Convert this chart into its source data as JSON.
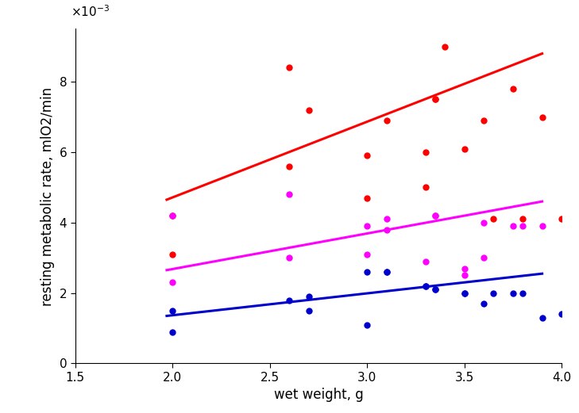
{
  "title": "",
  "xlabel": "wet weight, g",
  "ylabel": "resting metabolic rate, mlO2/min",
  "xlim": [
    1.5,
    4.0
  ],
  "ylim": [
    0,
    0.0095
  ],
  "yticks": [
    0,
    0.002,
    0.004,
    0.006,
    0.008
  ],
  "xticks": [
    1.5,
    2.0,
    2.5,
    3.0,
    3.5,
    4.0
  ],
  "red_scatter_x": [
    2.0,
    2.0,
    2.6,
    2.6,
    2.7,
    3.0,
    3.0,
    3.1,
    3.3,
    3.3,
    3.35,
    3.35,
    3.4,
    3.5,
    3.6,
    3.65,
    3.75,
    3.8,
    3.9,
    4.0
  ],
  "red_scatter_y": [
    0.0031,
    0.0042,
    0.0084,
    0.0056,
    0.0072,
    0.0059,
    0.0047,
    0.0069,
    0.006,
    0.005,
    0.0075,
    0.0075,
    0.009,
    0.0061,
    0.0069,
    0.0041,
    0.0078,
    0.0041,
    0.007,
    0.0041
  ],
  "magenta_scatter_x": [
    2.0,
    2.0,
    2.6,
    2.6,
    3.0,
    3.0,
    3.1,
    3.1,
    3.3,
    3.35,
    3.35,
    3.5,
    3.5,
    3.6,
    3.6,
    3.75,
    3.8,
    3.9
  ],
  "magenta_scatter_y": [
    0.0042,
    0.0023,
    0.0048,
    0.003,
    0.0031,
    0.0039,
    0.0041,
    0.0038,
    0.0029,
    0.0042,
    0.0042,
    0.0027,
    0.0025,
    0.004,
    0.003,
    0.0039,
    0.0039,
    0.0039
  ],
  "blue_scatter_x": [
    2.0,
    2.0,
    2.6,
    2.7,
    2.7,
    3.0,
    3.0,
    3.1,
    3.1,
    3.3,
    3.3,
    3.35,
    3.35,
    3.5,
    3.5,
    3.6,
    3.65,
    3.75,
    3.8,
    3.9,
    4.0
  ],
  "blue_scatter_y": [
    0.0009,
    0.0015,
    0.0018,
    0.0019,
    0.0015,
    0.0011,
    0.0026,
    0.0026,
    0.0026,
    0.0022,
    0.0022,
    0.0021,
    0.0021,
    0.002,
    0.002,
    0.0017,
    0.002,
    0.002,
    0.002,
    0.0013,
    0.0014
  ],
  "red_line_x": [
    1.97,
    3.9
  ],
  "red_line_y": [
    0.00465,
    0.0088
  ],
  "magenta_line_x": [
    1.97,
    3.9
  ],
  "magenta_line_y": [
    0.00265,
    0.0046
  ],
  "blue_line_x": [
    1.97,
    3.9
  ],
  "blue_line_y": [
    0.00135,
    0.00255
  ],
  "red_color": "#ff0000",
  "magenta_color": "#ff00ff",
  "blue_color": "#0000cc",
  "scatter_size": 36,
  "line_width": 2.2,
  "tick_label_fontsize": 11,
  "axis_label_fontsize": 12
}
